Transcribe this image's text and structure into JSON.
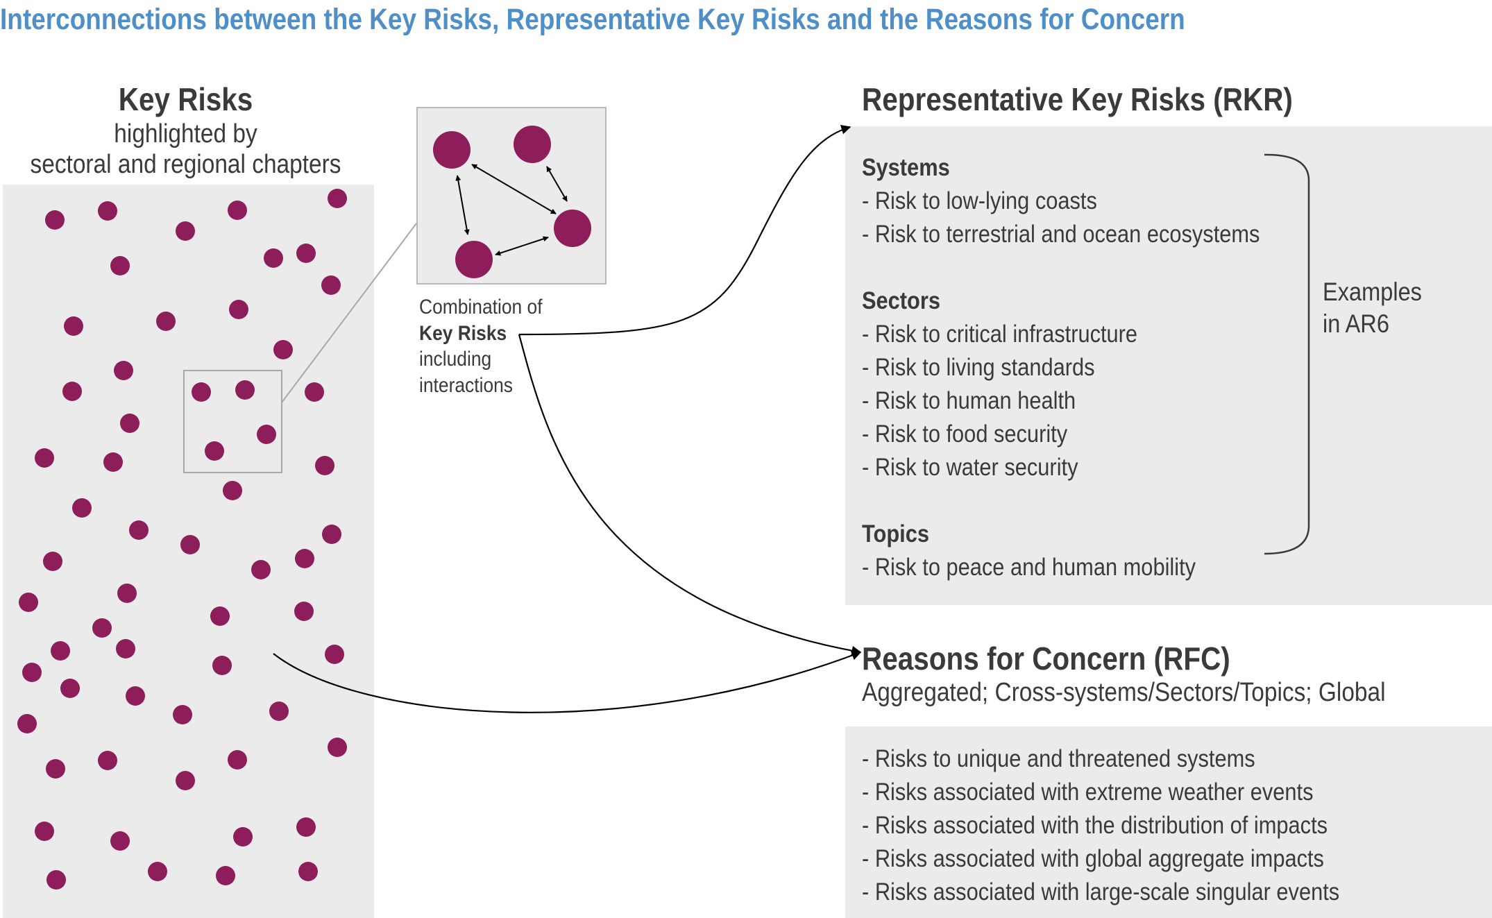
{
  "title": "Interconnections between the Key Risks, Representative Key Risks and the Reasons for Concern",
  "key_risks": {
    "heading": "Key Risks",
    "subtitle_line1": "highlighted by",
    "subtitle_line2": "sectoral and regional chapters"
  },
  "combination": {
    "line1": "Combination of",
    "line2": "Key Risks",
    "line3": "including",
    "line4": "interactions"
  },
  "rkr": {
    "heading": "Representative Key Risks (RKR)",
    "groups": [
      {
        "name": "Systems",
        "items": [
          "- Risk to low-lying coasts",
          "- Risk to terrestrial and ocean ecosystems"
        ]
      },
      {
        "name": "Sectors",
        "items": [
          "- Risk to critical infrastructure",
          "- Risk to living standards",
          "- Risk to human health",
          "- Risk to food security",
          "- Risk to water security"
        ]
      },
      {
        "name": "Topics",
        "items": [
          "- Risk to peace and human mobility"
        ]
      }
    ],
    "examples_line1": "Examples",
    "examples_line2": "in AR6"
  },
  "rfc": {
    "heading": "Reasons for Concern (RFC)",
    "subtitle": "Aggregated; Cross-systems/Sectors/Topics; Global",
    "items": [
      "- Risks to unique and threatened systems",
      "- Risks associated with extreme weather events",
      "- Risks associated with the distribution of impacts",
      "- Risks associated with global aggregate impacts",
      "- Risks associated with large-scale singular events"
    ]
  },
  "colors": {
    "title": "#4f8fc9",
    "dot": "#8e1d5c",
    "panel": "#ebebeb",
    "text": "#3a3a3a"
  }
}
